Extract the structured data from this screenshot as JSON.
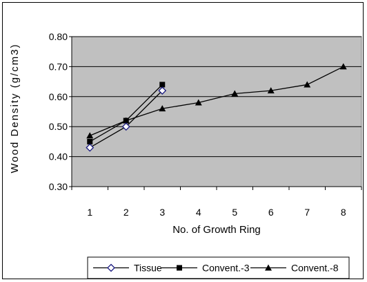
{
  "chart_data": {
    "type": "line",
    "title": "",
    "xlabel": "No. of Growth Ring",
    "ylabel": "Wood Density (g/cm3)",
    "ylim": [
      0.3,
      0.8
    ],
    "yticks": [
      "0.30",
      "0.40",
      "0.50",
      "0.60",
      "0.70",
      "0.80"
    ],
    "categories": [
      "1",
      "2",
      "3",
      "4",
      "5",
      "6",
      "7",
      "8"
    ],
    "grid": "horizontal",
    "plot_background": "#c0c0c0",
    "legend_position": "bottom",
    "series": [
      {
        "name": "Tissue",
        "marker": "diamond-open",
        "x": [
          1,
          2,
          3
        ],
        "values": [
          0.43,
          0.5,
          0.62
        ]
      },
      {
        "name": "Convent.-3",
        "marker": "square",
        "x": [
          1,
          2,
          3
        ],
        "values": [
          0.45,
          0.52,
          0.64
        ]
      },
      {
        "name": "Convent.-8",
        "marker": "triangle",
        "x": [
          1,
          2,
          3,
          4,
          5,
          6,
          7,
          8
        ],
        "values": [
          0.47,
          0.52,
          0.56,
          0.58,
          0.61,
          0.62,
          0.64,
          0.7
        ]
      }
    ]
  }
}
